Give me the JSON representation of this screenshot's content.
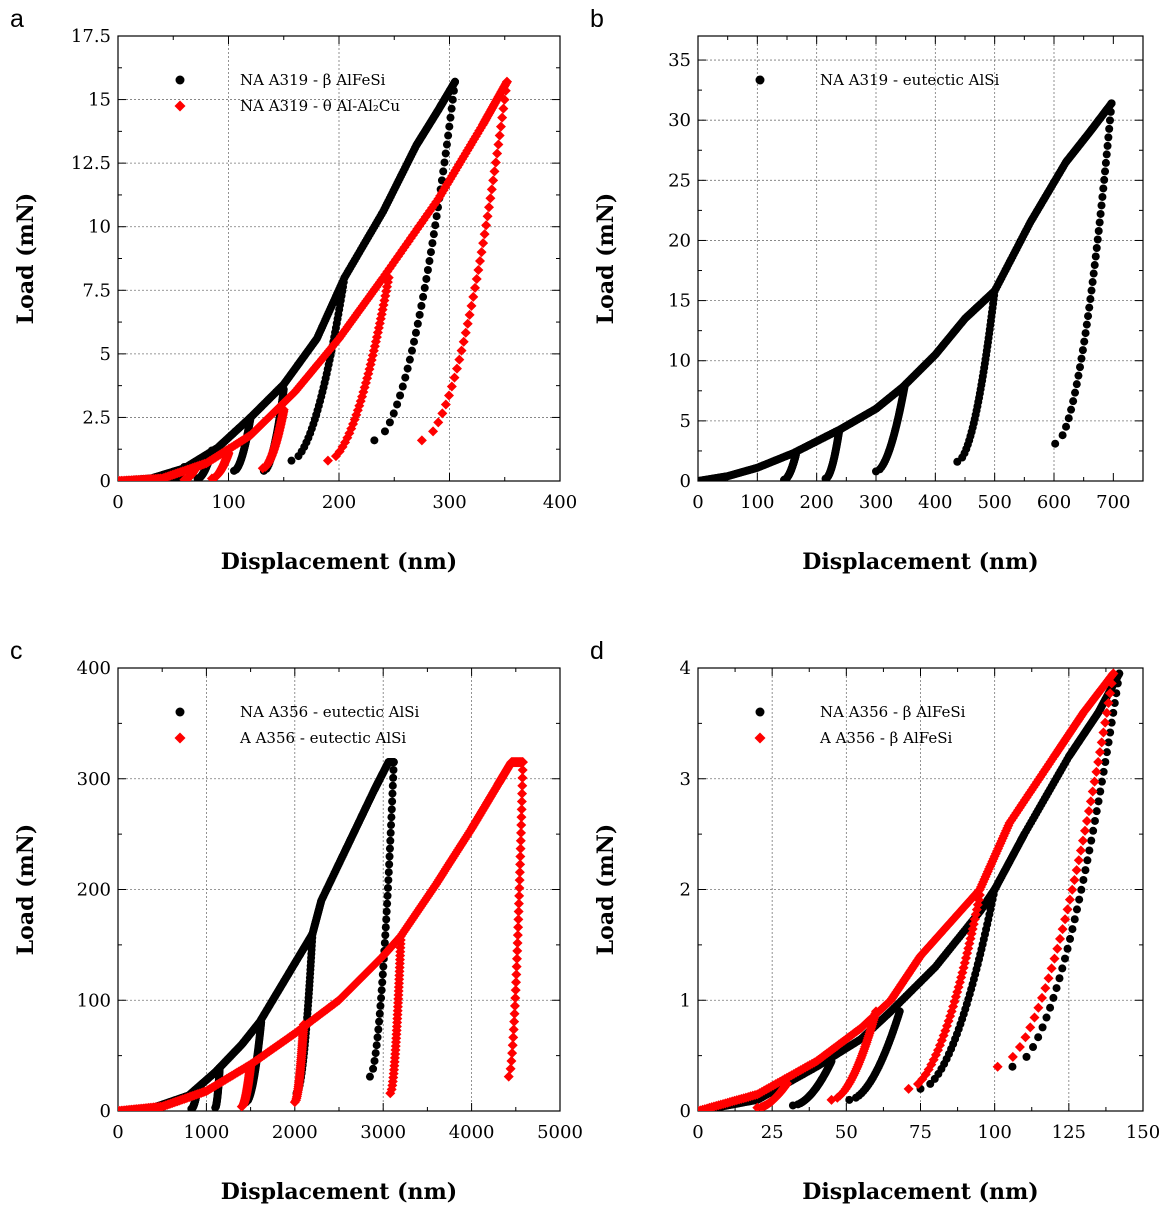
{
  "chart_data": [
    {
      "panel": "a",
      "type": "scatter",
      "xlabel": "Displacement (nm)",
      "ylabel": "Load (mN)",
      "xlim": [
        0,
        400
      ],
      "ylim": [
        0,
        17.5
      ],
      "xticks": [
        "0",
        "100",
        "200",
        "300",
        "400"
      ],
      "yticks": [
        "0",
        "2.5",
        "5",
        "7.5",
        "10",
        "12.5",
        "15",
        "17.5"
      ],
      "grid": true,
      "legend_position": "top-left",
      "series": [
        {
          "name": "NA A319 - β AlFeSi",
          "marker": "circle",
          "color": "#000000",
          "loading": [
            [
              0,
              0
            ],
            [
              30,
              0.1
            ],
            [
              60,
              0.5
            ],
            [
              90,
              1.3
            ],
            [
              120,
              2.5
            ],
            [
              150,
              3.8
            ],
            [
              180,
              5.6
            ],
            [
              205,
              8.0
            ],
            [
              240,
              10.6
            ],
            [
              270,
              13.2
            ],
            [
              290,
              14.6
            ],
            [
              305,
              15.7
            ]
          ],
          "unloads": [
            {
              "peak": [
                60,
                0.55
              ],
              "end": [
                50,
                0.05
              ]
            },
            {
              "peak": [
                85,
                1.2
              ],
              "end": [
                72,
                0.1
              ]
            },
            {
              "peak": [
                120,
                2.5
              ],
              "end": [
                105,
                0.4
              ]
            },
            {
              "peak": [
                150,
                3.6
              ],
              "end": [
                132,
                0.4
              ]
            },
            {
              "peak": [
                205,
                8.0
              ],
              "end": [
                157,
                0.8
              ]
            },
            {
              "peak": [
                305,
                15.7
              ],
              "end": [
                232,
                1.6
              ]
            }
          ]
        },
        {
          "name": "NA A319 - θ Al-Al₂Cu",
          "marker": "diamond",
          "color": "#ff0000",
          "loading": [
            [
              0,
              0
            ],
            [
              40,
              0.1
            ],
            [
              80,
              0.7
            ],
            [
              120,
              1.8
            ],
            [
              160,
              3.5
            ],
            [
              200,
              5.6
            ],
            [
              240,
              8.0
            ],
            [
              290,
              11.1
            ],
            [
              330,
              14.0
            ],
            [
              352,
              15.7
            ]
          ],
          "unloads": [
            {
              "peak": [
                70,
                0.5
              ],
              "end": [
                60,
                0.05
              ]
            },
            {
              "peak": [
                100,
                1.1
              ],
              "end": [
                85,
                0.1
              ]
            },
            {
              "peak": [
                150,
                2.8
              ],
              "end": [
                131,
                0.5
              ]
            },
            {
              "peak": [
                245,
                8.0
              ],
              "end": [
                190,
                0.8
              ]
            },
            {
              "peak": [
                352,
                15.7
              ],
              "end": [
                275,
                1.6
              ]
            }
          ]
        }
      ]
    },
    {
      "panel": "b",
      "type": "scatter",
      "xlabel": "Displacement (nm)",
      "ylabel": "Load (mN)",
      "xlim": [
        0,
        750
      ],
      "ylim": [
        0,
        37
      ],
      "xticks": [
        "0",
        "100",
        "200",
        "300",
        "400",
        "500",
        "600",
        "700"
      ],
      "yticks": [
        "0",
        "5",
        "10",
        "15",
        "20",
        "25",
        "30",
        "35"
      ],
      "grid": true,
      "legend_position": "top-left",
      "series": [
        {
          "name": "NA A319 - eutectic AlSi",
          "marker": "circle",
          "color": "#000000",
          "loading": [
            [
              0,
              0
            ],
            [
              50,
              0.4
            ],
            [
              100,
              1.1
            ],
            [
              160,
              2.3
            ],
            [
              240,
              4.3
            ],
            [
              300,
              6.0
            ],
            [
              345,
              7.8
            ],
            [
              400,
              10.5
            ],
            [
              450,
              13.5
            ],
            [
              500,
              15.8
            ],
            [
              560,
              21.5
            ],
            [
              620,
              26.5
            ],
            [
              660,
              29.0
            ],
            [
              697,
              31.4
            ]
          ],
          "unloads": [
            {
              "peak": [
                165,
                2.2
              ],
              "end": [
                145,
                0.1
              ]
            },
            {
              "peak": [
                238,
                4.2
              ],
              "end": [
                215,
                0.2
              ]
            },
            {
              "peak": [
                348,
                7.8
              ],
              "end": [
                300,
                0.8
              ]
            },
            {
              "peak": [
                500,
                15.8
              ],
              "end": [
                437,
                1.6
              ]
            },
            {
              "peak": [
                697,
                31.4
              ],
              "end": [
                602,
                3.1
              ]
            }
          ]
        }
      ]
    },
    {
      "panel": "c",
      "type": "scatter",
      "xlabel": "Displacement (nm)",
      "ylabel": "Load (mN)",
      "xlim": [
        0,
        5000
      ],
      "ylim": [
        0,
        400
      ],
      "xticks": [
        "0",
        "1000",
        "2000",
        "3000",
        "4000",
        "5000"
      ],
      "yticks": [
        "0",
        "100",
        "200",
        "300",
        "400"
      ],
      "grid": true,
      "legend_position": "top-left",
      "series": [
        {
          "name": "NA A356 - eutectic AlSi",
          "marker": "circle",
          "color": "#000000",
          "loading": [
            [
              0,
              0
            ],
            [
              400,
              3
            ],
            [
              800,
              14
            ],
            [
              1100,
              35
            ],
            [
              1400,
              60
            ],
            [
              1600,
              80
            ],
            [
              1900,
              120
            ],
            [
              2200,
              160
            ],
            [
              2300,
              190
            ],
            [
              2600,
              240
            ],
            [
              2900,
              290
            ],
            [
              3060,
              315
            ],
            [
              3120,
              315
            ]
          ],
          "unloads": [
            {
              "peak": [
                900,
                20
              ],
              "end": [
                830,
                2
              ]
            },
            {
              "peak": [
                1150,
                38
              ],
              "end": [
                1100,
                3
              ]
            },
            {
              "peak": [
                1620,
                80
              ],
              "end": [
                1450,
                8
              ]
            },
            {
              "peak": [
                2200,
                160
              ],
              "end": [
                2020,
                16
              ]
            },
            {
              "peak": [
                3120,
                315
              ],
              "end": [
                2850,
                31
              ]
            }
          ]
        },
        {
          "name": "A A356 - eutectic AlSi",
          "marker": "diamond",
          "color": "#ff0000",
          "loading": [
            [
              0,
              0
            ],
            [
              500,
              4
            ],
            [
              1000,
              18
            ],
            [
              1500,
              42
            ],
            [
              2000,
              70
            ],
            [
              2500,
              100
            ],
            [
              3000,
              140
            ],
            [
              3200,
              158
            ],
            [
              3600,
              205
            ],
            [
              4000,
              255
            ],
            [
              4300,
              295
            ],
            [
              4450,
              315
            ],
            [
              4580,
              315
            ]
          ],
          "unloads": [
            {
              "peak": [
                1500,
                42
              ],
              "end": [
                1400,
                4
              ]
            },
            {
              "peak": [
                2100,
                78
              ],
              "end": [
                2000,
                8
              ]
            },
            {
              "peak": [
                3200,
                158
              ],
              "end": [
                3080,
                16
              ]
            },
            {
              "peak": [
                4580,
                315
              ],
              "end": [
                4420,
                31
              ]
            }
          ]
        }
      ]
    },
    {
      "panel": "d",
      "type": "scatter",
      "xlabel": "Displacement (nm)",
      "ylabel": "Load (mN)",
      "xlim": [
        0,
        150
      ],
      "ylim": [
        0,
        4
      ],
      "xticks": [
        "0",
        "25",
        "50",
        "75",
        "100",
        "125",
        "150"
      ],
      "yticks": [
        "0",
        "1",
        "2",
        "3",
        "4"
      ],
      "grid": true,
      "legend_position": "top-left",
      "series": [
        {
          "name": "NA A356 - β AlFeSi",
          "marker": "circle",
          "color": "#000000",
          "loading": [
            [
              0,
              0
            ],
            [
              20,
              0.1
            ],
            [
              40,
              0.4
            ],
            [
              55,
              0.65
            ],
            [
              65,
              0.9
            ],
            [
              80,
              1.3
            ],
            [
              95,
              1.8
            ],
            [
              100,
              2.0
            ],
            [
              110,
              2.5
            ],
            [
              125,
              3.2
            ],
            [
              135,
              3.6
            ],
            [
              142,
              3.95
            ]
          ],
          "unloads": [
            {
              "peak": [
                45,
                0.45
              ],
              "end": [
                32,
                0.05
              ]
            },
            {
              "peak": [
                68,
                0.9
              ],
              "end": [
                51,
                0.1
              ]
            },
            {
              "peak": [
                100,
                2.0
              ],
              "end": [
                75,
                0.2
              ]
            },
            {
              "peak": [
                142,
                3.95
              ],
              "end": [
                106,
                0.4
              ]
            }
          ]
        },
        {
          "name": "A A356 - β AlFeSi",
          "marker": "diamond",
          "color": "#ff0000",
          "loading": [
            [
              0,
              0
            ],
            [
              20,
              0.15
            ],
            [
              40,
              0.45
            ],
            [
              55,
              0.75
            ],
            [
              65,
              1.0
            ],
            [
              75,
              1.4
            ],
            [
              85,
              1.7
            ],
            [
              95,
              2.0
            ],
            [
              105,
              2.6
            ],
            [
              120,
              3.2
            ],
            [
              130,
              3.6
            ],
            [
              140,
              3.95
            ]
          ],
          "unloads": [
            {
              "peak": [
                30,
                0.25
              ],
              "end": [
                20,
                0.03
              ]
            },
            {
              "peak": [
                60,
                0.9
              ],
              "end": [
                45,
                0.1
              ]
            },
            {
              "peak": [
                95,
                1.95
              ],
              "end": [
                71,
                0.2
              ]
            },
            {
              "peak": [
                140,
                3.95
              ],
              "end": [
                101,
                0.4
              ]
            }
          ]
        }
      ]
    }
  ]
}
